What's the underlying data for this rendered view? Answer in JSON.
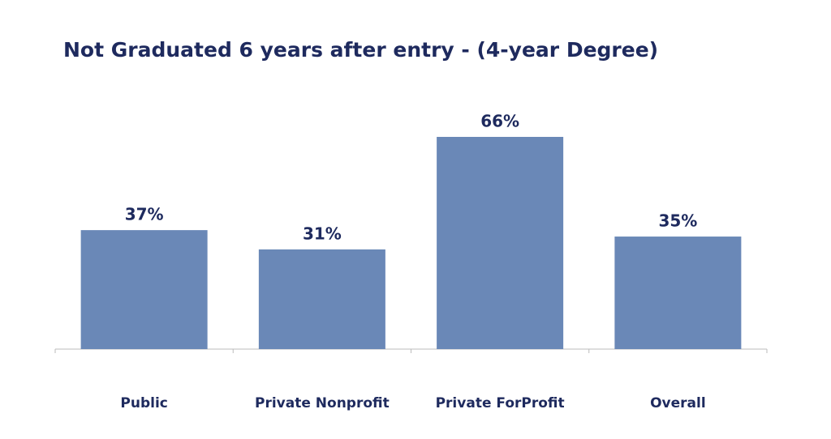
{
  "chart_data": {
    "type": "bar",
    "title": "Not Graduated 6 years after entry - (4-year Degree)",
    "categories": [
      "Public",
      "Private Nonprofit",
      "Private ForProfit",
      "Overall"
    ],
    "values": [
      37,
      31,
      66,
      35
    ],
    "value_labels": [
      "37%",
      "31%",
      "66%",
      "35%"
    ],
    "color": "#6a88b7"
  }
}
